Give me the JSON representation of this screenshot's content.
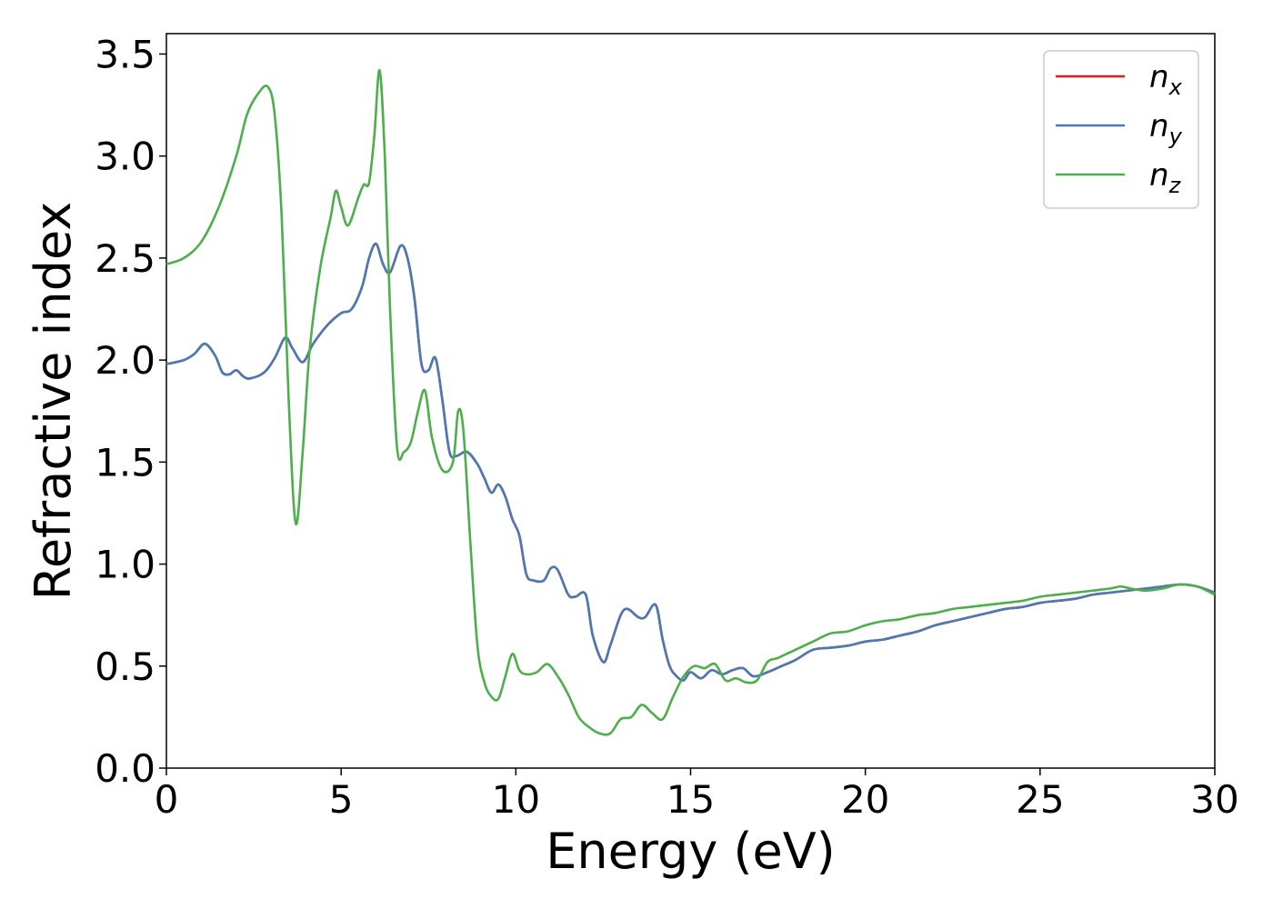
{
  "chart_data": {
    "type": "line",
    "xlabel": "Energy (eV)",
    "ylabel": "Refractive index",
    "xlim": [
      0,
      30
    ],
    "ylim": [
      0,
      3.6
    ],
    "xticks": [
      0,
      5,
      10,
      15,
      20,
      25,
      30
    ],
    "yticks": [
      0.0,
      0.5,
      1.0,
      1.5,
      2.0,
      2.5,
      3.0,
      3.5
    ],
    "xtick_labels": [
      "0",
      "5",
      "10",
      "15",
      "20",
      "25",
      "30"
    ],
    "ytick_labels": [
      "0.0",
      "0.5",
      "1.0",
      "1.5",
      "2.0",
      "2.5",
      "3.0",
      "3.5"
    ],
    "grid": false,
    "legend_placement": "top-right",
    "series": [
      {
        "name": "n",
        "subscript": "x",
        "color": "#e41a1c",
        "x": [
          0,
          0.5,
          0.8,
          1.1,
          1.4,
          1.6,
          1.8,
          2.0,
          2.2,
          2.4,
          2.8,
          3.1,
          3.4,
          3.6,
          3.9,
          4.2,
          4.6,
          5.0,
          5.3,
          5.6,
          5.8,
          6.0,
          6.2,
          6.4,
          6.7,
          6.9,
          7.1,
          7.3,
          7.5,
          7.7,
          7.9,
          8.1,
          8.3,
          8.6,
          8.9,
          9.1,
          9.3,
          9.5,
          9.7,
          9.9,
          10.1,
          10.3,
          10.5,
          10.8,
          11.0,
          11.2,
          11.5,
          11.7,
          12.0,
          12.2,
          12.5,
          12.7,
          13.0,
          13.2,
          13.5,
          13.7,
          14.0,
          14.2,
          14.4,
          14.6,
          14.8,
          15.0,
          15.3,
          15.6,
          15.9,
          16.2,
          16.5,
          16.8,
          17.2,
          17.6,
          18.0,
          18.5,
          19.0,
          19.5,
          20.0,
          20.5,
          21.0,
          21.5,
          22.0,
          22.5,
          23.0,
          23.5,
          24.0,
          24.5,
          25.0,
          25.5,
          26.0,
          26.5,
          27.0,
          27.5,
          28.0,
          28.5,
          29.0,
          29.5,
          30.0
        ],
        "y": [
          1.98,
          2.0,
          2.03,
          2.08,
          2.02,
          1.94,
          1.93,
          1.95,
          1.92,
          1.91,
          1.94,
          2.01,
          2.11,
          2.06,
          1.99,
          2.08,
          2.17,
          2.23,
          2.25,
          2.36,
          2.5,
          2.57,
          2.47,
          2.43,
          2.56,
          2.5,
          2.3,
          1.98,
          1.95,
          2.01,
          1.8,
          1.55,
          1.53,
          1.55,
          1.49,
          1.42,
          1.35,
          1.39,
          1.33,
          1.22,
          1.14,
          0.95,
          0.92,
          0.92,
          0.98,
          0.97,
          0.85,
          0.84,
          0.85,
          0.65,
          0.52,
          0.6,
          0.75,
          0.78,
          0.74,
          0.74,
          0.8,
          0.63,
          0.5,
          0.45,
          0.43,
          0.47,
          0.44,
          0.48,
          0.46,
          0.48,
          0.49,
          0.45,
          0.47,
          0.5,
          0.53,
          0.58,
          0.59,
          0.6,
          0.62,
          0.63,
          0.65,
          0.67,
          0.7,
          0.72,
          0.74,
          0.76,
          0.78,
          0.79,
          0.81,
          0.82,
          0.83,
          0.85,
          0.86,
          0.87,
          0.88,
          0.89,
          0.9,
          0.89,
          0.86
        ]
      },
      {
        "name": "n",
        "subscript": "y",
        "color": "#4a7ab5",
        "x": [
          0,
          0.5,
          0.8,
          1.1,
          1.4,
          1.6,
          1.8,
          2.0,
          2.2,
          2.4,
          2.8,
          3.1,
          3.4,
          3.6,
          3.9,
          4.2,
          4.6,
          5.0,
          5.3,
          5.6,
          5.8,
          6.0,
          6.2,
          6.4,
          6.7,
          6.9,
          7.1,
          7.3,
          7.5,
          7.7,
          7.9,
          8.1,
          8.3,
          8.6,
          8.9,
          9.1,
          9.3,
          9.5,
          9.7,
          9.9,
          10.1,
          10.3,
          10.5,
          10.8,
          11.0,
          11.2,
          11.5,
          11.7,
          12.0,
          12.2,
          12.5,
          12.7,
          13.0,
          13.2,
          13.5,
          13.7,
          14.0,
          14.2,
          14.4,
          14.6,
          14.8,
          15.0,
          15.3,
          15.6,
          15.9,
          16.2,
          16.5,
          16.8,
          17.2,
          17.6,
          18.0,
          18.5,
          19.0,
          19.5,
          20.0,
          20.5,
          21.0,
          21.5,
          22.0,
          22.5,
          23.0,
          23.5,
          24.0,
          24.5,
          25.0,
          25.5,
          26.0,
          26.5,
          27.0,
          27.5,
          28.0,
          28.5,
          29.0,
          29.5,
          30.0
        ],
        "y": [
          1.98,
          2.0,
          2.03,
          2.08,
          2.02,
          1.94,
          1.93,
          1.95,
          1.92,
          1.91,
          1.94,
          2.01,
          2.11,
          2.06,
          1.99,
          2.08,
          2.17,
          2.23,
          2.25,
          2.36,
          2.5,
          2.57,
          2.47,
          2.43,
          2.56,
          2.5,
          2.3,
          1.98,
          1.95,
          2.01,
          1.8,
          1.55,
          1.53,
          1.55,
          1.49,
          1.42,
          1.35,
          1.39,
          1.33,
          1.22,
          1.14,
          0.95,
          0.92,
          0.92,
          0.98,
          0.97,
          0.85,
          0.84,
          0.85,
          0.65,
          0.52,
          0.6,
          0.75,
          0.78,
          0.74,
          0.74,
          0.8,
          0.63,
          0.5,
          0.45,
          0.43,
          0.47,
          0.44,
          0.48,
          0.46,
          0.48,
          0.49,
          0.45,
          0.47,
          0.5,
          0.53,
          0.58,
          0.59,
          0.6,
          0.62,
          0.63,
          0.65,
          0.67,
          0.7,
          0.72,
          0.74,
          0.76,
          0.78,
          0.79,
          0.81,
          0.82,
          0.83,
          0.85,
          0.86,
          0.87,
          0.88,
          0.89,
          0.9,
          0.89,
          0.86
        ]
      },
      {
        "name": "n",
        "subscript": "z",
        "color": "#4daf4a",
        "x": [
          0,
          0.5,
          1.0,
          1.5,
          2.0,
          2.3,
          2.6,
          2.9,
          3.1,
          3.3,
          3.5,
          3.7,
          3.9,
          4.1,
          4.4,
          4.7,
          4.85,
          5.0,
          5.2,
          5.5,
          5.65,
          5.8,
          5.95,
          6.1,
          6.25,
          6.4,
          6.6,
          6.8,
          7.0,
          7.2,
          7.4,
          7.6,
          7.9,
          8.2,
          8.35,
          8.5,
          8.7,
          8.9,
          9.1,
          9.3,
          9.5,
          9.7,
          9.9,
          10.1,
          10.3,
          10.6,
          10.9,
          11.2,
          11.5,
          11.8,
          12.1,
          12.4,
          12.7,
          13.0,
          13.3,
          13.6,
          13.9,
          14.2,
          14.5,
          14.8,
          15.1,
          15.4,
          15.7,
          16.0,
          16.3,
          16.6,
          16.9,
          17.2,
          17.5,
          18.0,
          18.5,
          19.0,
          19.5,
          20.0,
          20.5,
          21.0,
          21.5,
          22.0,
          22.5,
          23.0,
          23.5,
          24.0,
          24.5,
          25.0,
          25.5,
          26.0,
          26.5,
          27.0,
          27.3,
          27.6,
          28.0,
          28.5,
          29.0,
          29.5,
          30.0
        ],
        "y": [
          2.47,
          2.5,
          2.58,
          2.75,
          3.0,
          3.2,
          3.3,
          3.34,
          3.2,
          2.7,
          1.8,
          1.2,
          1.55,
          2.05,
          2.45,
          2.7,
          2.83,
          2.75,
          2.66,
          2.8,
          2.86,
          2.87,
          3.1,
          3.42,
          3.0,
          2.25,
          1.57,
          1.55,
          1.6,
          1.75,
          1.85,
          1.62,
          1.46,
          1.5,
          1.75,
          1.65,
          1.1,
          0.6,
          0.42,
          0.35,
          0.34,
          0.45,
          0.56,
          0.48,
          0.46,
          0.47,
          0.51,
          0.45,
          0.36,
          0.25,
          0.2,
          0.17,
          0.17,
          0.24,
          0.25,
          0.31,
          0.27,
          0.24,
          0.35,
          0.45,
          0.5,
          0.49,
          0.51,
          0.43,
          0.44,
          0.42,
          0.43,
          0.52,
          0.54,
          0.58,
          0.62,
          0.66,
          0.67,
          0.7,
          0.72,
          0.73,
          0.75,
          0.76,
          0.78,
          0.79,
          0.8,
          0.81,
          0.82,
          0.84,
          0.85,
          0.86,
          0.87,
          0.88,
          0.89,
          0.88,
          0.87,
          0.88,
          0.9,
          0.89,
          0.85
        ]
      }
    ]
  }
}
